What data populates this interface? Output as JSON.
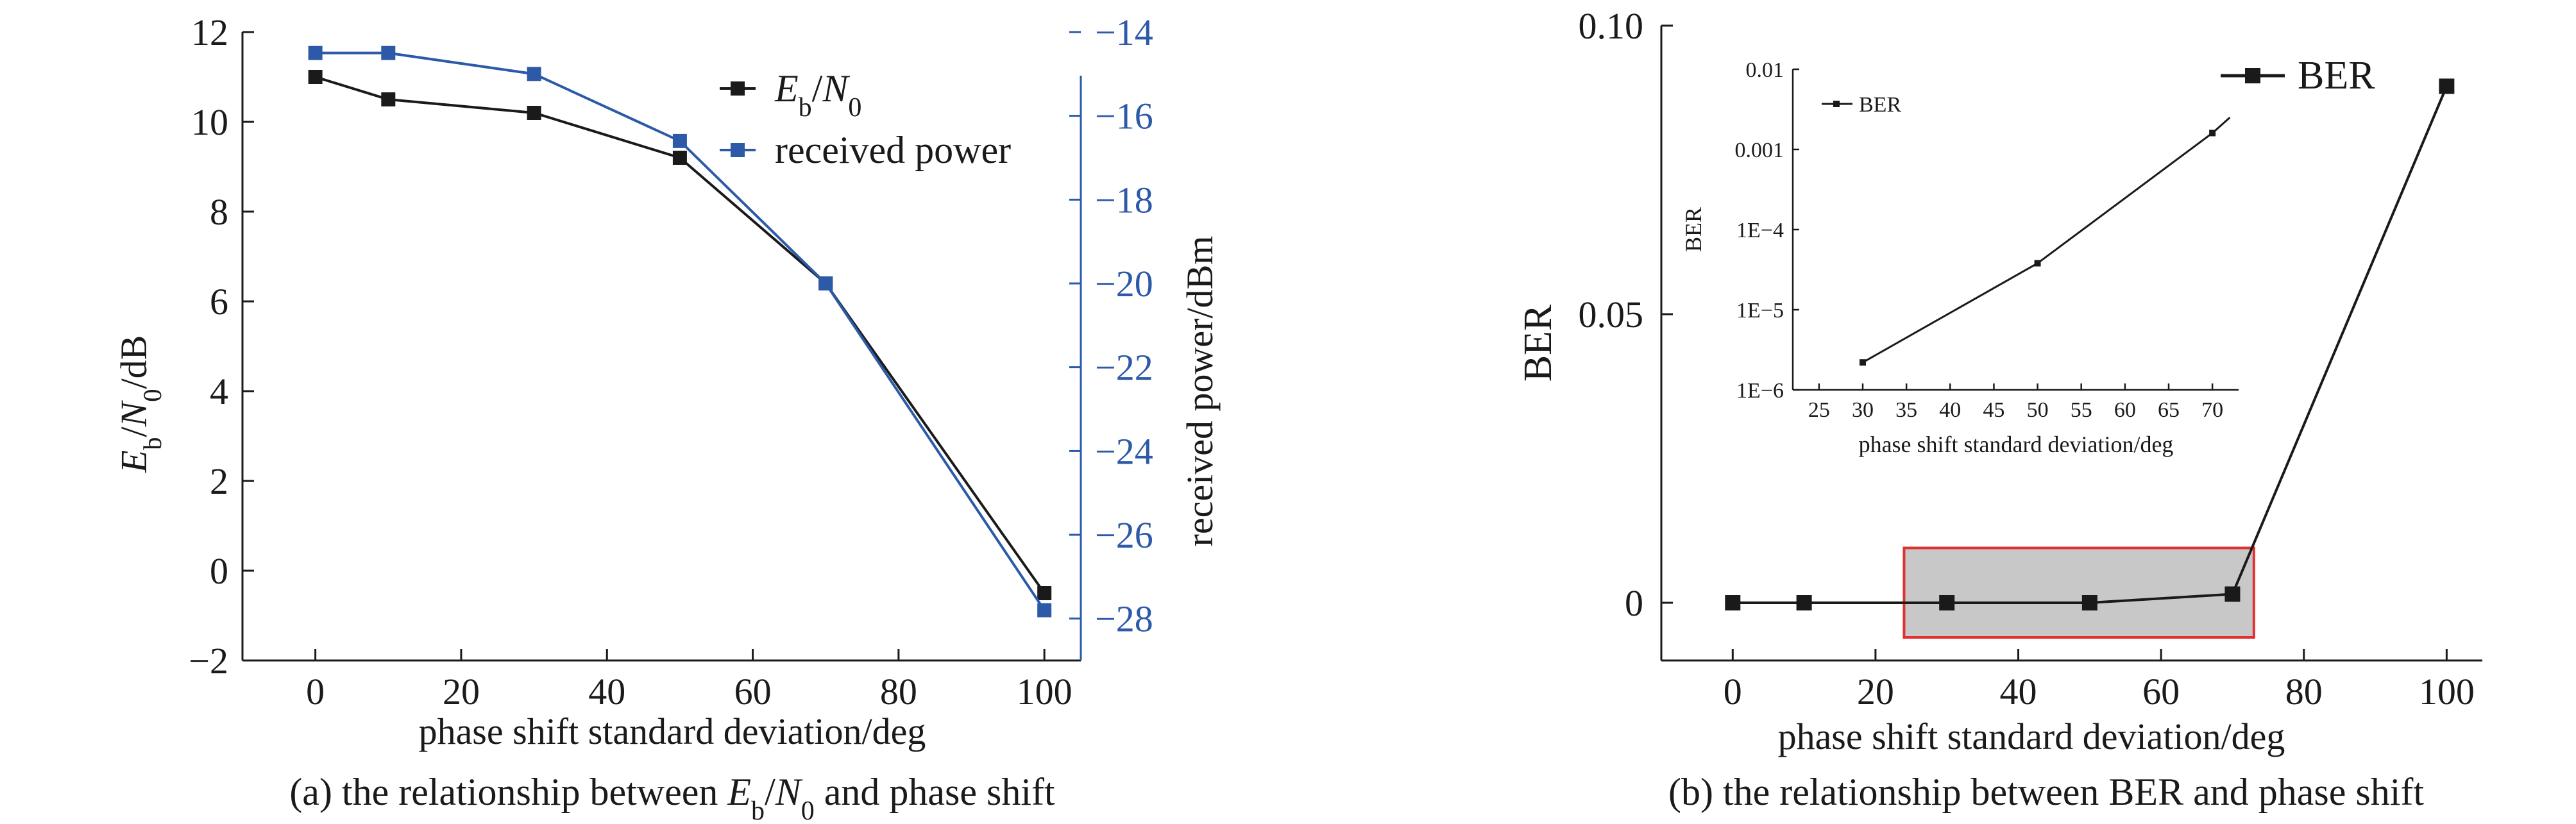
{
  "chart_data": [
    {
      "type": "line",
      "ylabel": "E_b/N_0/dB",
      "y2label": "received power/dBm",
      "xlabel": "phase shift standard deviation/deg",
      "caption": "(a) the relationship between E_b/N_0 and phase shift",
      "xlim": [
        -10,
        105
      ],
      "ylim": [
        -2,
        12
      ],
      "y2lim": [
        -29,
        -14
      ],
      "x_ticks": [
        0,
        20,
        40,
        60,
        80,
        100
      ],
      "y_ticks": [
        -2,
        0,
        2,
        4,
        6,
        8,
        10,
        12
      ],
      "y2_ticks": [
        -28,
        -26,
        -24,
        -22,
        -20,
        -18,
        -16,
        -14
      ],
      "x": [
        0,
        10,
        30,
        50,
        70,
        100
      ],
      "series": [
        {
          "name": "E_b/N_0",
          "axis": "left",
          "color": "#1a1a1a",
          "values": [
            11.0,
            10.5,
            10.2,
            9.2,
            6.4,
            -0.5
          ]
        },
        {
          "name": "received power",
          "axis": "right",
          "color": "#2d5aa8",
          "values": [
            -14.5,
            -14.5,
            -15.0,
            -16.6,
            -20.0,
            -27.8
          ]
        }
      ],
      "legend": "top-right"
    },
    {
      "type": "line",
      "ylabel": "BER",
      "xlabel": "phase shift standard deviation/deg",
      "caption": "(b) the relationship between BER and phase shift",
      "xlim": [
        -10,
        105
      ],
      "ylim": [
        -0.01,
        0.1
      ],
      "x_ticks": [
        0,
        20,
        40,
        60,
        80,
        100
      ],
      "y_ticks": [
        0,
        0.05,
        0.1
      ],
      "y_tick_labels": [
        "0",
        "0.05",
        "0.10"
      ],
      "x": [
        0,
        10,
        30,
        50,
        70,
        100
      ],
      "series": [
        {
          "name": "BER",
          "color": "#1a1a1a",
          "values": [
            0.0,
            0.0,
            0.0,
            0.0,
            0.0015,
            0.0895
          ]
        }
      ],
      "legend": "top-right",
      "highlight_box": {
        "x_range": [
          24,
          73
        ],
        "y_range": [
          -0.006,
          0.0095
        ],
        "fill": "#c8c8c8",
        "stroke": "#e03030"
      },
      "inset": {
        "type": "line",
        "scale": "log",
        "ylabel": "BER",
        "xlabel": "phase shift standard deviation/deg",
        "xlim": [
          22,
          73
        ],
        "ylim": [
          1e-06,
          0.01
        ],
        "x_ticks": [
          25,
          30,
          35,
          40,
          45,
          50,
          55,
          60,
          65,
          70
        ],
        "y_ticks": [
          1e-06,
          1e-05,
          0.0001,
          0.001,
          0.01
        ],
        "y_tick_labels": [
          "1E−6",
          "1E−5",
          "1E−4",
          "0.001",
          "0.01"
        ],
        "x": [
          30,
          50,
          70,
          72
        ],
        "series": [
          {
            "name": "BER",
            "color": "#1a1a1a",
            "values": [
              2.2e-06,
              3.8e-05,
              0.0016,
              0.0025
            ]
          }
        ],
        "legend": "top-left"
      }
    }
  ]
}
